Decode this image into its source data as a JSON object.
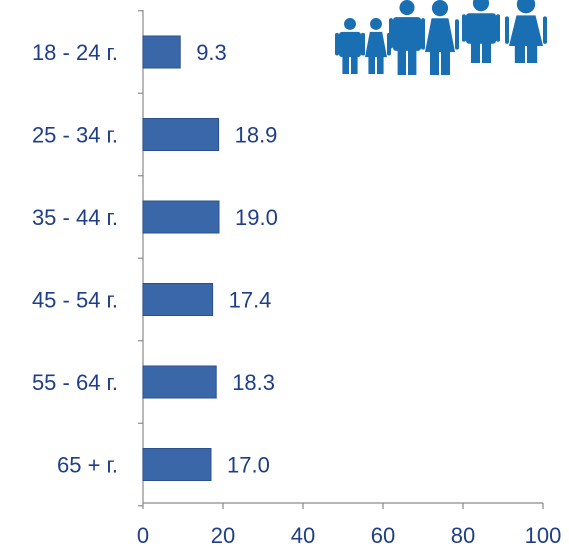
{
  "chart_data": {
    "type": "bar",
    "orientation": "horizontal",
    "categories": [
      "18 - 24 г.",
      "25 - 34 г.",
      "35 - 44 г.",
      "45 - 54 г.",
      "55 - 64 г.",
      "65 + г."
    ],
    "values": [
      9.3,
      18.9,
      19.0,
      17.4,
      18.3,
      17.0
    ],
    "value_labels": [
      "9.3",
      "18.9",
      "19.0",
      "17.4",
      "18.3",
      "17.0"
    ],
    "xlim": [
      0,
      100
    ],
    "xticks": [
      "0",
      "20",
      "40",
      "60",
      "80",
      "100"
    ],
    "grid": false,
    "legend": "none"
  },
  "colors": {
    "bar": "#3a67a7",
    "bar_border": "#2a5090",
    "axis": "#8a8a8a",
    "text": "#1f3e88",
    "icon": "#1a6fb3"
  },
  "icons": [
    "boy-icon",
    "girl-icon",
    "man-icon",
    "woman-icon",
    "man-icon",
    "woman-icon"
  ]
}
